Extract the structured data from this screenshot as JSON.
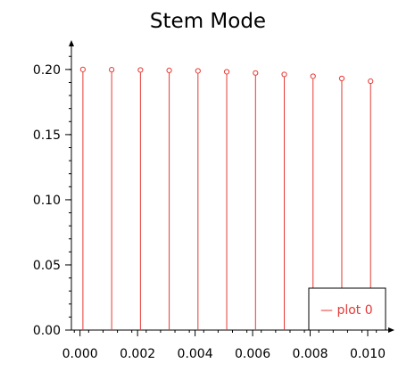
{
  "chart_data": {
    "type": "scatter",
    "style": "stem",
    "title": "Stem Mode",
    "xlabel": "",
    "ylabel": "",
    "xlim": [
      -0.0003,
      0.0109
    ],
    "ylim": [
      0.0,
      0.2225
    ],
    "x_ticks": [
      "0.000",
      "0.002",
      "0.004",
      "0.006",
      "0.008",
      "0.010"
    ],
    "x_tick_values": [
      0.0,
      0.002,
      0.004,
      0.006,
      0.008,
      0.01
    ],
    "y_ticks": [
      "0.00",
      "0.05",
      "0.10",
      "0.15",
      "0.20"
    ],
    "y_tick_values": [
      0.0,
      0.05,
      0.1,
      0.15,
      0.2
    ],
    "grid": false,
    "legend_position": "bottom-right",
    "series": [
      {
        "name": "— plot 0",
        "color": "#e53935",
        "x": [
          0.0001,
          0.0011,
          0.0021,
          0.0031,
          0.0041,
          0.0051,
          0.0061,
          0.0071,
          0.0081,
          0.0091,
          0.0101
        ],
        "y": [
          0.2,
          0.1998,
          0.1996,
          0.1993,
          0.1989,
          0.1982,
          0.1973,
          0.1962,
          0.1948,
          0.1931,
          0.191
        ]
      }
    ]
  }
}
